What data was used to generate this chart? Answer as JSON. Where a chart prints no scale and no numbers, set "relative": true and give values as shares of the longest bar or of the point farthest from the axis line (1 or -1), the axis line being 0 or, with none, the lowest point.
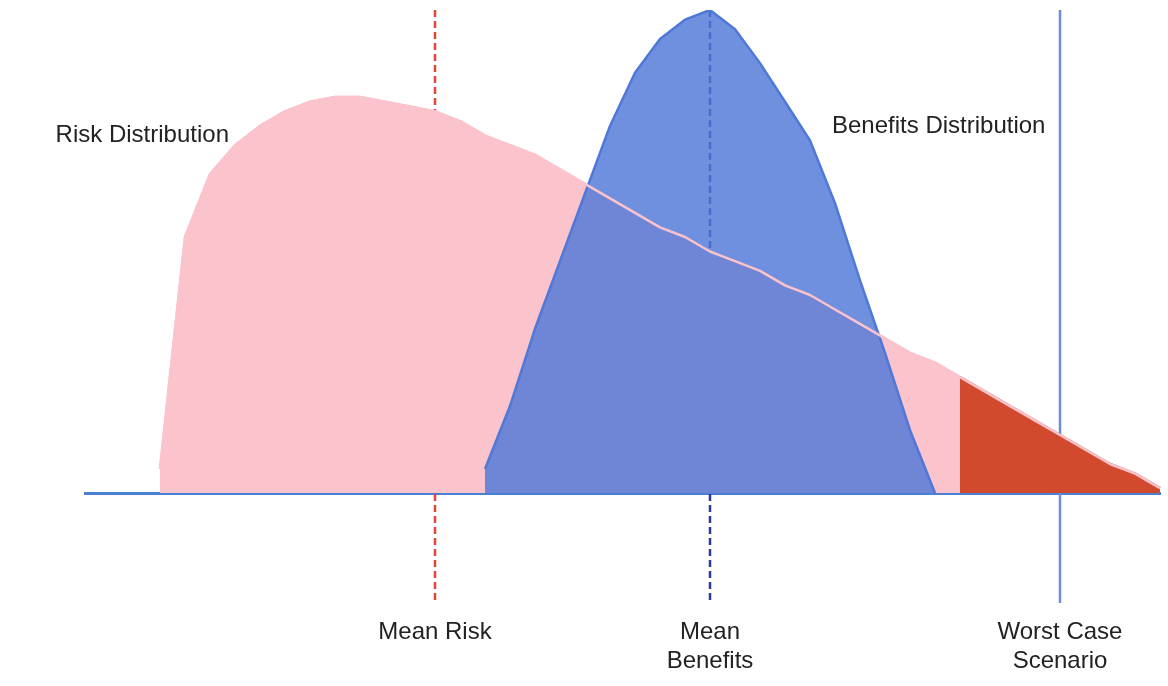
{
  "chart_data": {
    "type": "area",
    "relative": true,
    "grid": false,
    "legend": false,
    "marker": "none",
    "categories": [
      null,
      null,
      null,
      null,
      null,
      null,
      null,
      null,
      null,
      null,
      null,
      null,
      null,
      null,
      "Mean Risk",
      null,
      null,
      null,
      null,
      null,
      null,
      null,
      null,
      null,
      null,
      "Mean Benefits",
      null,
      null,
      null,
      null,
      null,
      null,
      null,
      null,
      null,
      null,
      null,
      null,
      null,
      "Worst Case Scenario",
      null,
      null,
      null,
      null
    ],
    "series": [
      {
        "name": "Risk Distribution",
        "color": "#fbc3cc",
        "values": [
          null,
          null,
          null,
          0.05,
          0.53,
          0.66,
          0.72,
          0.76,
          0.79,
          0.81,
          0.82,
          0.82,
          0.81,
          0.8,
          0.79,
          0.77,
          0.74,
          0.72,
          0.7,
          0.67,
          0.64,
          0.61,
          0.58,
          0.55,
          0.53,
          0.5,
          0.48,
          0.46,
          0.43,
          0.41,
          0.38,
          0.35,
          0.32,
          0.29,
          0.27,
          0.24,
          0.21,
          0.18,
          0.15,
          0.12,
          0.09,
          0.06,
          0.04,
          0.01
        ]
      },
      {
        "name": "Benefits Distribution",
        "color": "#4f78d8",
        "values": [
          null,
          null,
          null,
          null,
          null,
          null,
          null,
          null,
          null,
          null,
          null,
          null,
          null,
          null,
          null,
          null,
          0.05,
          0.18,
          0.34,
          0.48,
          0.62,
          0.76,
          0.87,
          0.94,
          0.98,
          1,
          0.96,
          0.89,
          0.81,
          0.73,
          0.6,
          0.44,
          0.29,
          0.13,
          0,
          null,
          null,
          null,
          null,
          null,
          null,
          null,
          null,
          null
        ]
      },
      {
        "color": "#d24a2e",
        "values": [
          null,
          null,
          null,
          null,
          null,
          null,
          null,
          null,
          null,
          null,
          null,
          null,
          null,
          null,
          null,
          null,
          null,
          null,
          null,
          null,
          null,
          null,
          null,
          null,
          null,
          null,
          null,
          null,
          null,
          null,
          null,
          null,
          null,
          null,
          null,
          0.24,
          0.21,
          0.18,
          0.15,
          0.12,
          0.09,
          0.06,
          0.04,
          0.01
        ]
      }
    ],
    "ref_lines": [
      {
        "axis": "x",
        "value": "Mean Risk",
        "color": "#e0463a",
        "line_style": "dashed"
      },
      {
        "axis": "x",
        "value": "Mean Benefits",
        "color": "#2a3a9a",
        "line_style": "dashed"
      },
      {
        "axis": "x",
        "value": "Worst Case Scenario",
        "color": "#6a8de0",
        "line_style": "solid"
      }
    ]
  }
}
